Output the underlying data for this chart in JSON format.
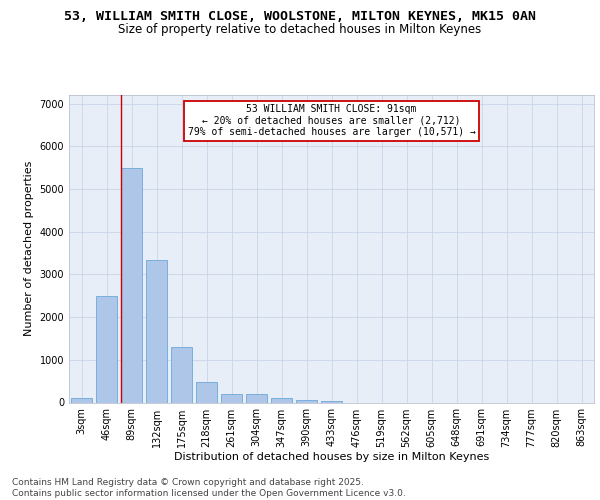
{
  "title_line1": "53, WILLIAM SMITH CLOSE, WOOLSTONE, MILTON KEYNES, MK15 0AN",
  "title_line2": "Size of property relative to detached houses in Milton Keynes",
  "xlabel": "Distribution of detached houses by size in Milton Keynes",
  "ylabel": "Number of detached properties",
  "bar_labels": [
    "3sqm",
    "46sqm",
    "89sqm",
    "132sqm",
    "175sqm",
    "218sqm",
    "261sqm",
    "304sqm",
    "347sqm",
    "390sqm",
    "433sqm",
    "476sqm",
    "519sqm",
    "562sqm",
    "605sqm",
    "648sqm",
    "691sqm",
    "734sqm",
    "777sqm",
    "820sqm",
    "863sqm"
  ],
  "bar_values": [
    100,
    2500,
    5500,
    3330,
    1300,
    480,
    210,
    205,
    95,
    60,
    40,
    0,
    0,
    0,
    0,
    0,
    0,
    0,
    0,
    0,
    0
  ],
  "bar_color": "#aec6e8",
  "bar_edge_color": "#5a9fd4",
  "vline_color": "#cc0000",
  "vline_x_idx": 2,
  "annotation_text": "53 WILLIAM SMITH CLOSE: 91sqm\n← 20% of detached houses are smaller (2,712)\n79% of semi-detached houses are larger (10,571) →",
  "annotation_box_color": "#ffffff",
  "annotation_box_edge": "#cc0000",
  "ylim": [
    0,
    7200
  ],
  "yticks": [
    0,
    1000,
    2000,
    3000,
    4000,
    5000,
    6000,
    7000
  ],
  "bg_color": "#e8eef8",
  "footer_text": "Contains HM Land Registry data © Crown copyright and database right 2025.\nContains public sector information licensed under the Open Government Licence v3.0.",
  "title_fontsize": 9.5,
  "subtitle_fontsize": 8.5,
  "axis_label_fontsize": 8,
  "tick_fontsize": 7,
  "annotation_fontsize": 7,
  "footer_fontsize": 6.5
}
